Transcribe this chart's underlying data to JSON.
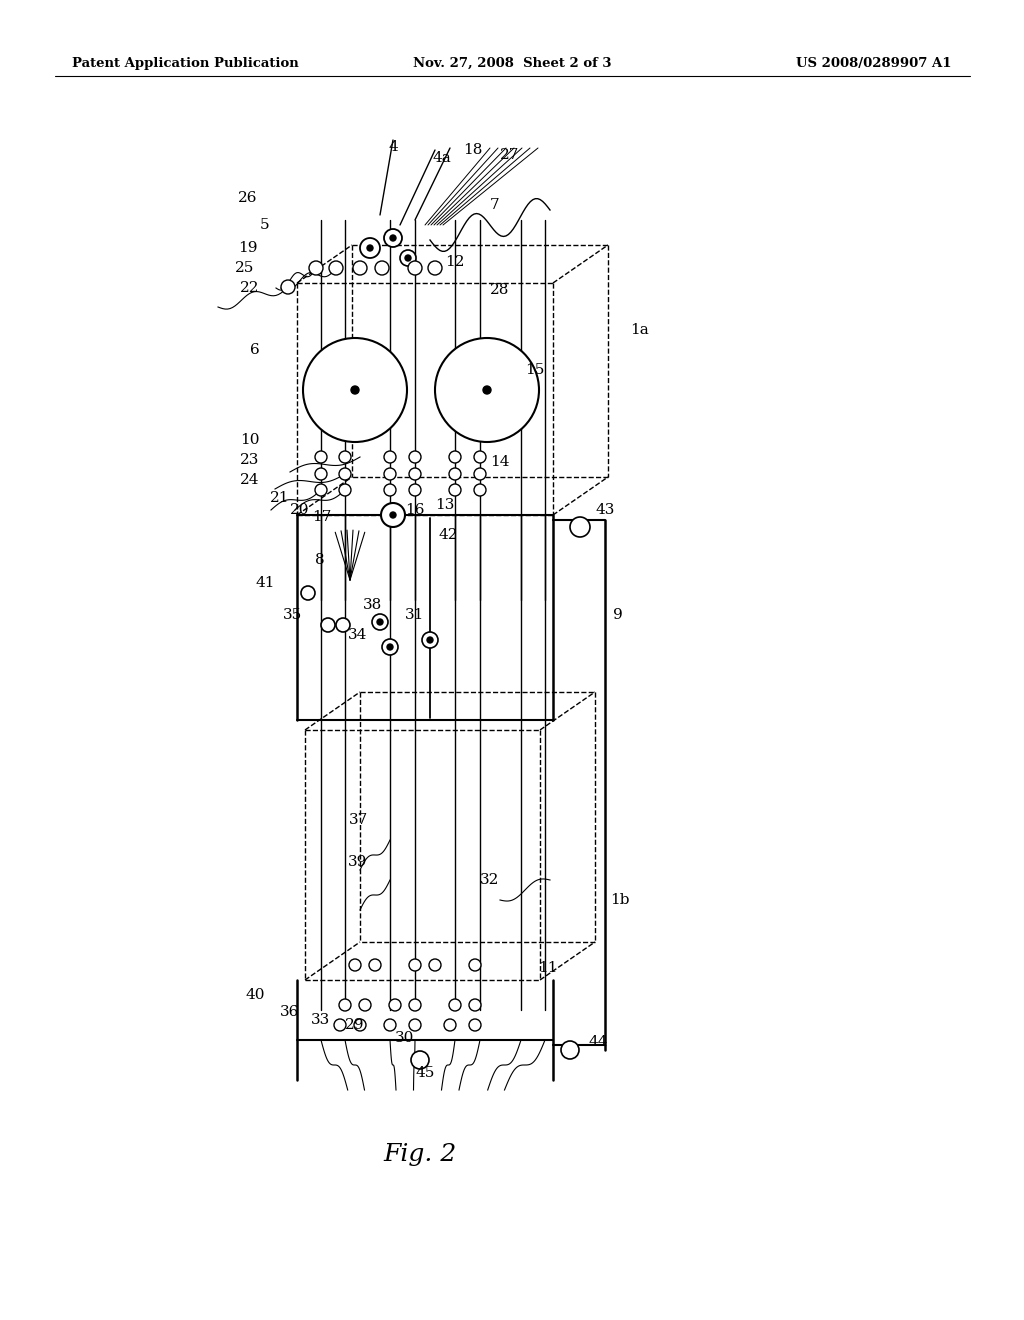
{
  "bg_color": "#ffffff",
  "header_left": "Patent Application Publication",
  "header_mid": "Nov. 27, 2008  Sheet 2 of 3",
  "header_right": "US 2008/0289907 A1",
  "fig_label": "Fig. 2",
  "lfs": 11
}
